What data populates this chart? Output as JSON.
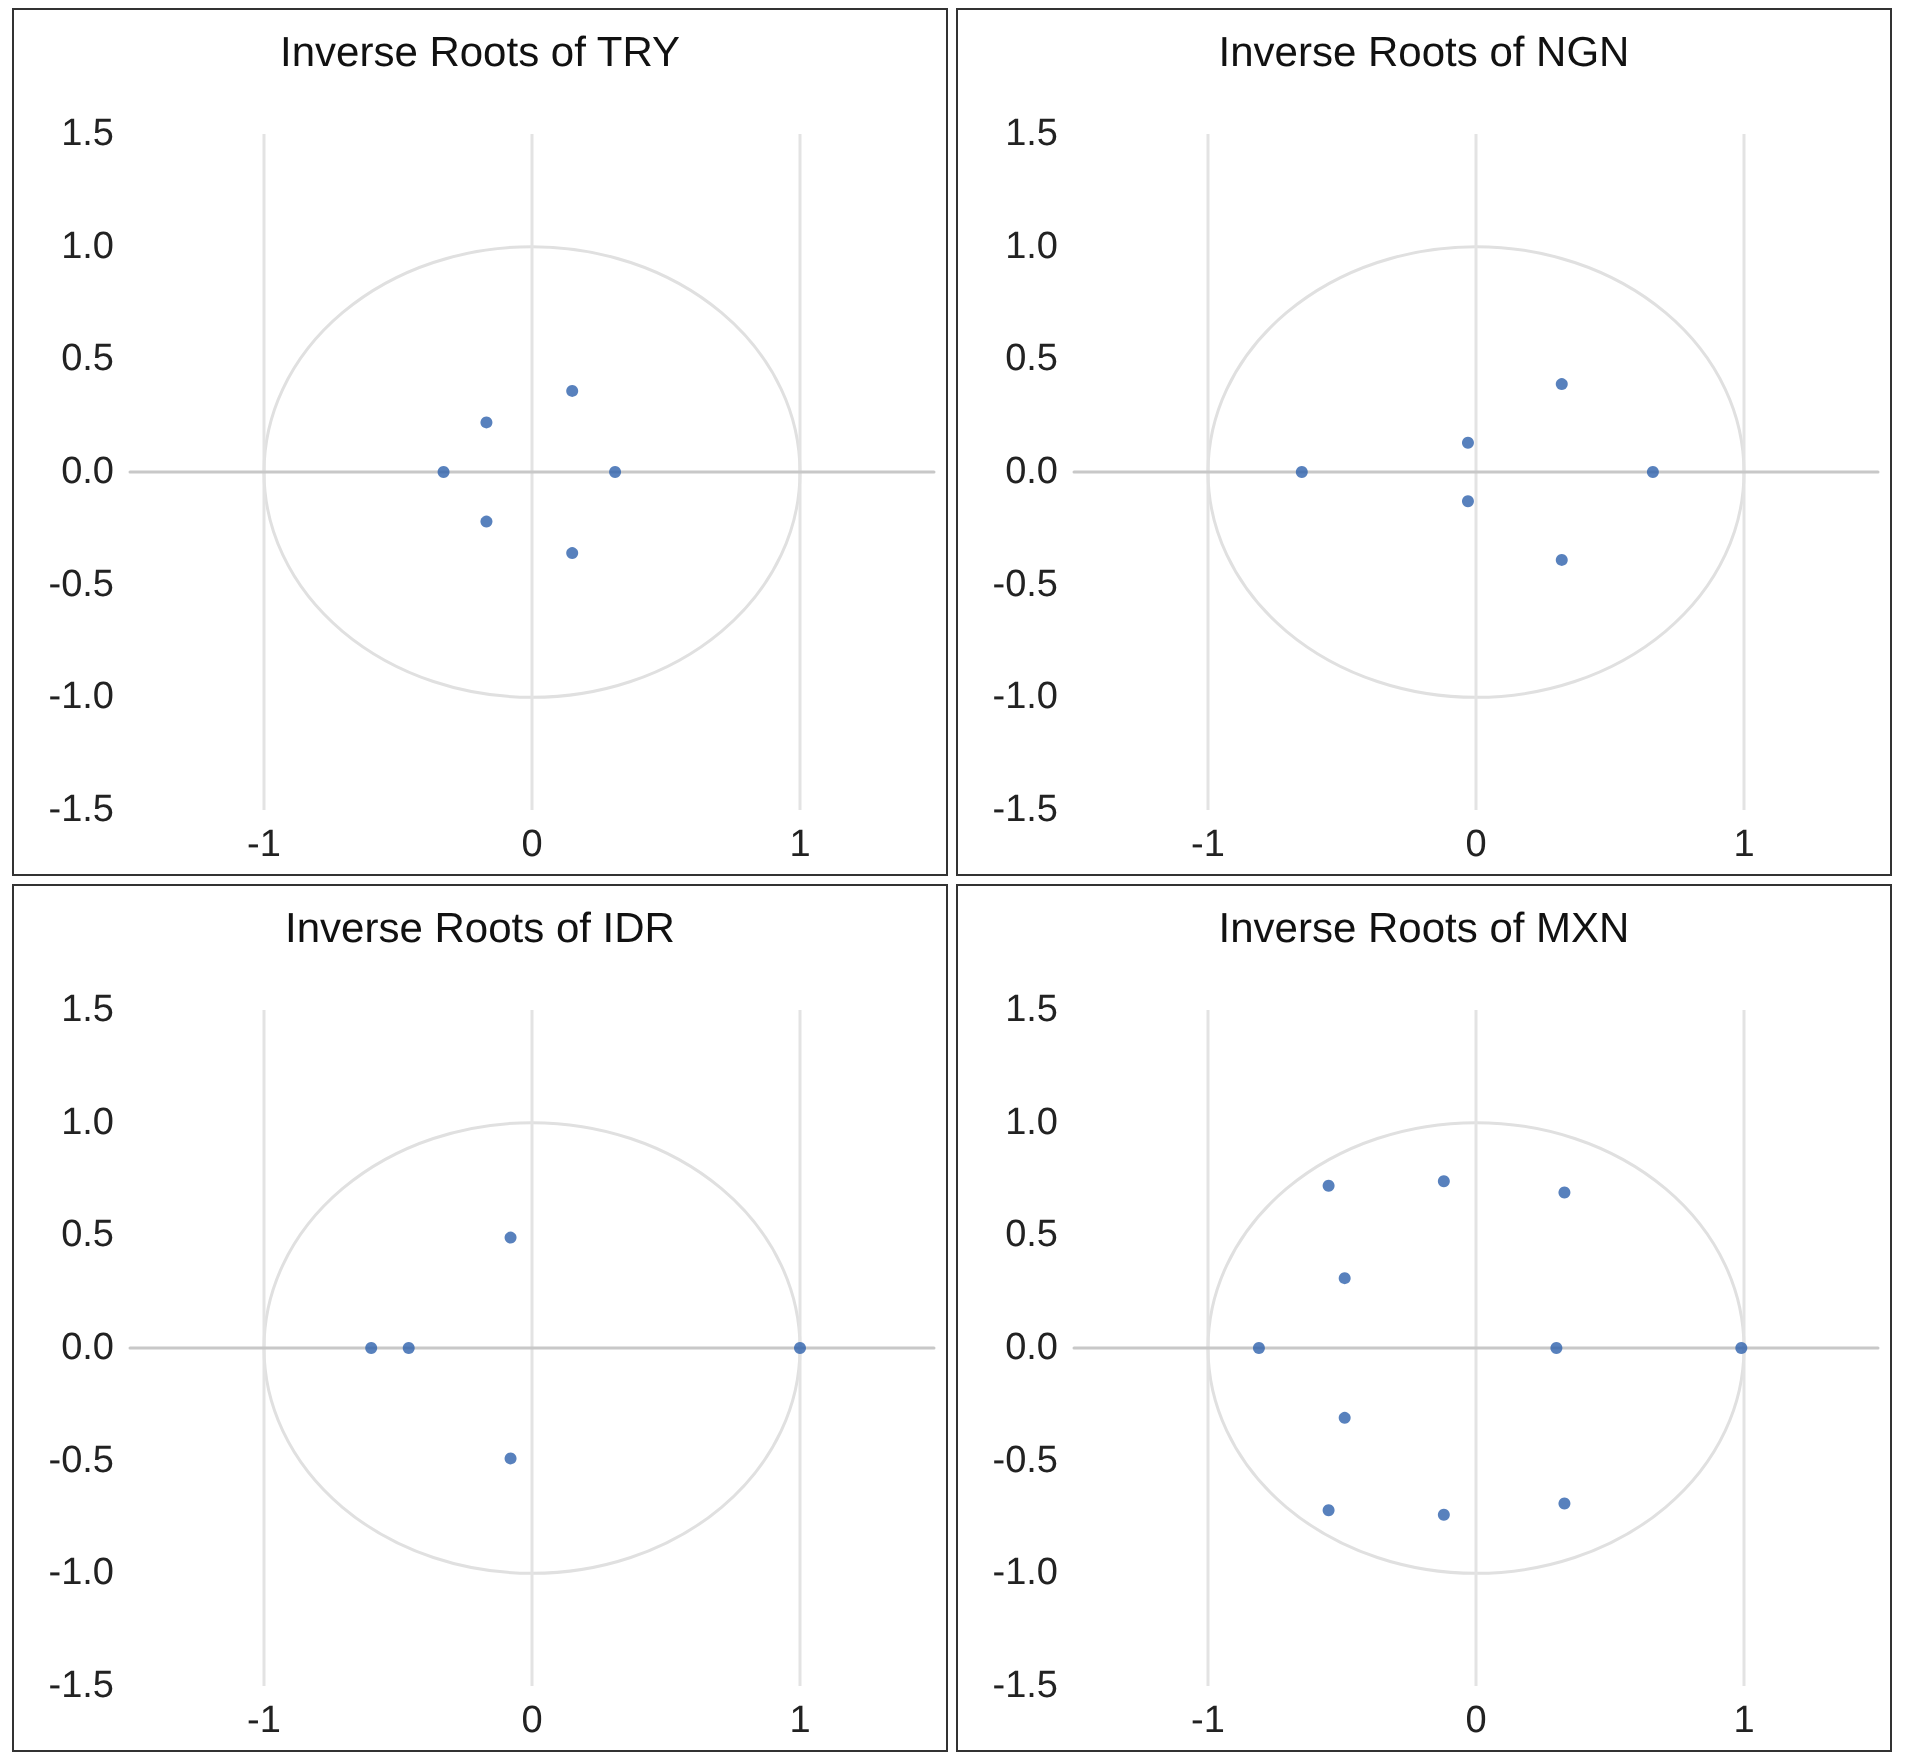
{
  "chart_data": [
    {
      "type": "scatter",
      "title": "Inverse Roots of TRY",
      "xlim": [
        -1.5,
        1.5
      ],
      "xticks": [
        -1,
        0,
        1
      ],
      "ylim": [
        -1.5,
        1.5
      ],
      "yticks": [
        -1.5,
        {
          "value": -1,
          "label": "-1.0"
        },
        -0.5,
        {
          "value": 0,
          "label": "0.0"
        },
        0.5,
        {
          "value": 1,
          "label": "1.0"
        },
        1.5
      ],
      "grid": "x",
      "marker": "circle",
      "series": [
        {
          "color": "#2e62ad",
          "x": [
            -0.33,
            -0.17,
            -0.17,
            0.15,
            0.15,
            0.31
          ],
          "values": [
            0,
            0.22,
            -0.22,
            0.36,
            -0.36,
            0
          ]
        }
      ]
    },
    {
      "type": "scatter",
      "title": "Inverse Roots of NGN",
      "xlim": [
        -1.5,
        1.5
      ],
      "xticks": [
        -1,
        0,
        1
      ],
      "ylim": [
        -1.5,
        1.5
      ],
      "yticks": [
        -1.5,
        {
          "value": -1,
          "label": "-1.0"
        },
        -0.5,
        {
          "value": 0,
          "label": "0.0"
        },
        0.5,
        {
          "value": 1,
          "label": "1.0"
        },
        1.5
      ],
      "grid": "x",
      "marker": "circle",
      "series": [
        {
          "color": "#2e62ad",
          "x": [
            -0.65,
            -0.03,
            -0.03,
            0.32,
            0.32,
            0.66
          ],
          "values": [
            0,
            0.13,
            -0.13,
            0.39,
            -0.39,
            0
          ]
        }
      ]
    },
    {
      "type": "scatter",
      "title": "Inverse Roots of IDR",
      "xlim": [
        -1.5,
        1.5
      ],
      "xticks": [
        -1,
        0,
        1
      ],
      "ylim": [
        -1.5,
        1.5
      ],
      "yticks": [
        -1.5,
        {
          "value": -1,
          "label": "-1.0"
        },
        -0.5,
        {
          "value": 0,
          "label": "0.0"
        },
        0.5,
        {
          "value": 1,
          "label": "1.0"
        },
        1.5
      ],
      "grid": "x",
      "marker": "circle",
      "series": [
        {
          "color": "#2e62ad",
          "x": [
            -0.6,
            -0.46,
            -0.08,
            -0.08,
            1
          ],
          "values": [
            0,
            0,
            0.49,
            -0.49,
            0
          ]
        }
      ]
    },
    {
      "type": "scatter",
      "title": "Inverse Roots of MXN",
      "xlim": [
        -1.5,
        1.5
      ],
      "xticks": [
        -1,
        0,
        1
      ],
      "ylim": [
        -1.5,
        1.5
      ],
      "yticks": [
        -1.5,
        {
          "value": -1,
          "label": "-1.0"
        },
        -0.5,
        {
          "value": 0,
          "label": "0.0"
        },
        0.5,
        {
          "value": 1,
          "label": "1.0"
        },
        1.5
      ],
      "grid": "x",
      "marker": "circle",
      "series": [
        {
          "color": "#2e62ad",
          "x": [
            -0.81,
            -0.55,
            -0.12,
            0.33,
            -0.49,
            -0.49,
            -0.55,
            -0.12,
            0.33,
            0.3,
            0.99
          ],
          "values": [
            0,
            0.72,
            0.74,
            0.69,
            0.31,
            -0.31,
            -0.72,
            -0.74,
            -0.69,
            0,
            0
          ]
        }
      ]
    }
  ]
}
